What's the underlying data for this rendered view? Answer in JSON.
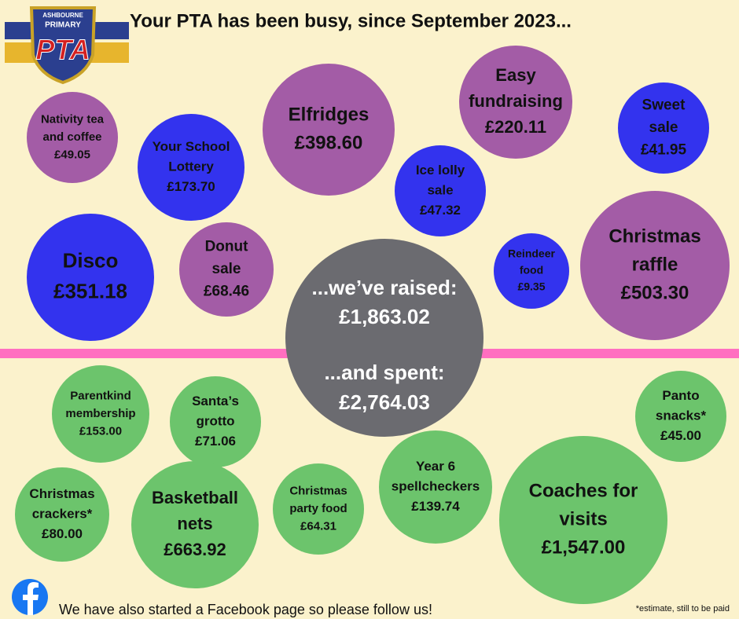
{
  "logo": {
    "school": "ASHBOURNE",
    "level": "PRIMARY",
    "name": "PTA"
  },
  "title": "Your PTA has been busy, since September 2023...",
  "raised": [
    {
      "label": [
        "Nativity tea",
        "and coffee"
      ],
      "amount": "£49.05"
    },
    {
      "label": [
        "Your School",
        "Lottery"
      ],
      "amount": "£173.70"
    },
    {
      "label": [
        "Elfridges"
      ],
      "amount": "£398.60"
    },
    {
      "label": [
        "Easy",
        "fundraising"
      ],
      "amount": "£220.11"
    },
    {
      "label": [
        "Sweet",
        "sale"
      ],
      "amount": "£41.95"
    },
    {
      "label": [
        "Ice lolly",
        "sale"
      ],
      "amount": "£47.32"
    },
    {
      "label": [
        "Disco"
      ],
      "amount": "£351.18"
    },
    {
      "label": [
        "Donut",
        "sale"
      ],
      "amount": "£68.46"
    },
    {
      "label": [
        "Reindeer",
        "food"
      ],
      "amount": "£9.35"
    },
    {
      "label": [
        "Christmas",
        "raffle"
      ],
      "amount": "£503.30"
    }
  ],
  "totals": {
    "raised_label": "...we’ve raised:",
    "raised": "£1,863.02",
    "spent_label": "...and spent:",
    "spent": "£2,764.03"
  },
  "spent": [
    {
      "label": [
        "Parentkind",
        "membership"
      ],
      "amount": "£153.00"
    },
    {
      "label": [
        "Santa’s",
        "grotto"
      ],
      "amount": "£71.06"
    },
    {
      "label": [
        "Panto",
        "snacks*"
      ],
      "amount": "£45.00"
    },
    {
      "label": [
        "Christmas",
        "crackers*"
      ],
      "amount": "£80.00"
    },
    {
      "label": [
        "Basketball",
        "nets"
      ],
      "amount": "£663.92"
    },
    {
      "label": [
        "Christmas",
        "party food"
      ],
      "amount": "£64.31"
    },
    {
      "label": [
        "Year 6",
        "spellcheckers"
      ],
      "amount": "£139.74"
    },
    {
      "label": [
        "Coaches for",
        "visits"
      ],
      "amount": "£1,547.00"
    }
  ],
  "footer": "We have also started a Facebook page so please follow us!",
  "note": "*estimate, still to be paid"
}
